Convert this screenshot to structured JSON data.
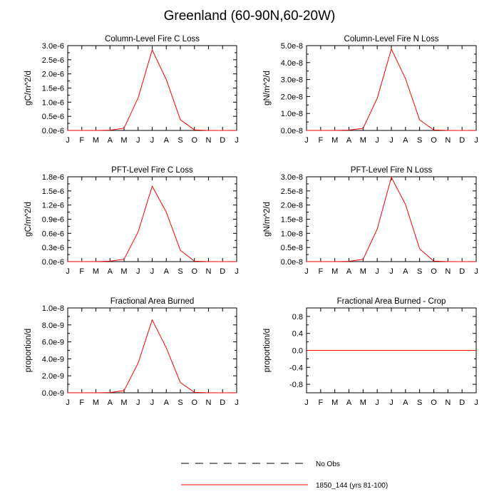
{
  "figure": {
    "title": "Greenland (60-90N,60-20W)"
  },
  "chart_data": [
    {
      "type": "line",
      "title": "Column-Level Fire C Loss",
      "xlabel": "",
      "ylabel": "gC/m^2/d",
      "categories": [
        "J",
        "F",
        "M",
        "A",
        "M",
        "J",
        "J",
        "A",
        "S",
        "O",
        "N",
        "D",
        "J"
      ],
      "ylim": [
        0,
        3e-06
      ],
      "yticks": [
        0,
        5e-07,
        1e-06,
        1.5e-06,
        2e-06,
        2.5e-06,
        3e-06
      ],
      "yticklabels": [
        "0.0e-6",
        "0.5e-6",
        "1.0e-6",
        "1.5e-6",
        "2.0e-6",
        "2.5e-6",
        "3.0e-6"
      ],
      "series": [
        {
          "name": "1850_144 (yrs 81-100)",
          "color": "#ff0000",
          "values": [
            0,
            0,
            0,
            1e-08,
            8e-08,
            1.15e-06,
            2.85e-06,
            1.8e-06,
            3.8e-07,
            2e-08,
            0,
            0,
            0
          ]
        }
      ]
    },
    {
      "type": "line",
      "title": "Column-Level Fire N Loss",
      "xlabel": "",
      "ylabel": "gN/m^2/d",
      "categories": [
        "J",
        "F",
        "M",
        "A",
        "M",
        "J",
        "J",
        "A",
        "S",
        "O",
        "N",
        "D",
        "J"
      ],
      "ylim": [
        0,
        5e-08
      ],
      "yticks": [
        0,
        1e-08,
        2e-08,
        3e-08,
        4e-08,
        5e-08
      ],
      "yticklabels": [
        "0.0e-8",
        "1.0e-8",
        "2.0e-8",
        "3.0e-8",
        "4.0e-8",
        "5.0e-8"
      ],
      "series": [
        {
          "name": "1850_144 (yrs 81-100)",
          "color": "#ff0000",
          "values": [
            0,
            0,
            0,
            2e-10,
            1.2e-09,
            1.9e-08,
            4.8e-08,
            3.05e-08,
            6.2e-09,
            3e-10,
            0,
            0,
            0
          ]
        }
      ]
    },
    {
      "type": "line",
      "title": "PFT-Level Fire C Loss",
      "xlabel": "",
      "ylabel": "gC/m^2/d",
      "categories": [
        "J",
        "F",
        "M",
        "A",
        "M",
        "J",
        "J",
        "A",
        "S",
        "O",
        "N",
        "D",
        "J"
      ],
      "ylim": [
        0,
        1.8e-06
      ],
      "yticks": [
        0,
        3e-07,
        6e-07,
        9e-07,
        1.2e-06,
        1.5e-06,
        1.8e-06
      ],
      "yticklabels": [
        "0.0e-6",
        "0.3e-6",
        "0.6e-6",
        "0.9e-6",
        "1.2e-6",
        "1.5e-6",
        "1.8e-6"
      ],
      "series": [
        {
          "name": "1850_144 (yrs 81-100)",
          "color": "#ff0000",
          "values": [
            0,
            0,
            0,
            1e-08,
            5e-08,
            6.3e-07,
            1.6e-06,
            1.05e-06,
            2.4e-07,
            1e-08,
            0,
            0,
            0
          ]
        }
      ]
    },
    {
      "type": "line",
      "title": "PFT-Level Fire N Loss",
      "xlabel": "",
      "ylabel": "gN/m^2/d",
      "categories": [
        "J",
        "F",
        "M",
        "A",
        "M",
        "J",
        "J",
        "A",
        "S",
        "O",
        "N",
        "D",
        "J"
      ],
      "ylim": [
        0,
        3e-08
      ],
      "yticks": [
        0,
        5e-09,
        1e-08,
        1.5e-08,
        2e-08,
        2.5e-08,
        3e-08
      ],
      "yticklabels": [
        "0.0e-8",
        "0.5e-8",
        "1.0e-8",
        "1.5e-8",
        "2.0e-8",
        "2.5e-8",
        "3.0e-8"
      ],
      "series": [
        {
          "name": "1850_144 (yrs 81-100)",
          "color": "#ff0000",
          "values": [
            0,
            0,
            0,
            1e-10,
            8e-10,
            1.15e-08,
            2.98e-08,
            2.02e-08,
            4.5e-09,
            2e-10,
            0,
            0,
            0
          ]
        }
      ]
    },
    {
      "type": "line",
      "title": "Fractional Area Burned",
      "xlabel": "",
      "ylabel": "proportion/d",
      "categories": [
        "J",
        "F",
        "M",
        "A",
        "M",
        "J",
        "J",
        "A",
        "S",
        "O",
        "N",
        "D",
        "J"
      ],
      "ylim": [
        0,
        1e-08
      ],
      "yticks": [
        0,
        2e-09,
        4e-09,
        6e-09,
        8e-09,
        1e-08
      ],
      "yticklabels": [
        "0.0e-9",
        "2.0e-9",
        "4.0e-9",
        "6.0e-9",
        "8.0e-9",
        "1.0e-8"
      ],
      "series": [
        {
          "name": "1850_144 (yrs 81-100)",
          "color": "#ff0000",
          "values": [
            0,
            0,
            0,
            3e-11,
            2.5e-10,
            3.5e-09,
            8.6e-09,
            5.3e-09,
            1.2e-09,
            5e-11,
            0,
            0,
            0
          ]
        }
      ]
    },
    {
      "type": "line",
      "title": "Fractional Area Burned - Crop",
      "xlabel": "",
      "ylabel": "proportion/d",
      "categories": [
        "J",
        "F",
        "M",
        "A",
        "M",
        "J",
        "J",
        "A",
        "S",
        "O",
        "N",
        "D",
        "J"
      ],
      "ylim": [
        -1.0,
        1.0
      ],
      "yticks": [
        -0.8,
        -0.4,
        0,
        0.4,
        0.8
      ],
      "yticklabels": [
        "-0.8",
        "-0.4",
        "0.0",
        "0.4",
        "0.8"
      ],
      "series": [
        {
          "name": "1850_144 (yrs 81-100)",
          "color": "#ff0000",
          "values": [
            0,
            0,
            0,
            0,
            0,
            0,
            0,
            0,
            0,
            0,
            0,
            0,
            0
          ]
        }
      ]
    }
  ],
  "legend": {
    "placement": "bottom-center",
    "items": [
      {
        "label": "No Obs",
        "color": "#000000",
        "style": "dashed"
      },
      {
        "label": "1850_144 (yrs 81-100)",
        "color": "#ff0000",
        "style": "solid"
      }
    ]
  }
}
